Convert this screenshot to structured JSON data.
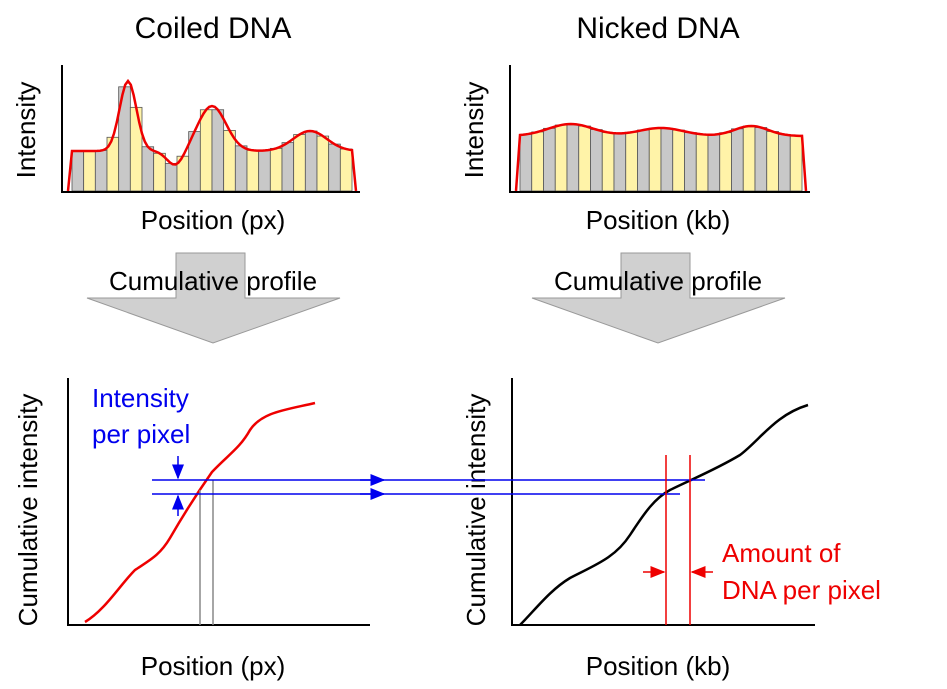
{
  "panels": [
    {
      "title": "Coiled DNA",
      "histogram": {
        "y_label": "Intensity",
        "x_label": "Position (px)"
      },
      "arrow_label": "Cumulative profile",
      "cumulative": {
        "y_label": "Cumulative intensity",
        "x_label": "Position (px)"
      },
      "annotation": [
        "Intensity",
        "per pixel"
      ]
    },
    {
      "title": "Nicked DNA",
      "histogram": {
        "y_label": "Intensity",
        "x_label": "Position (kb)"
      },
      "arrow_label": "Cumulative profile",
      "cumulative": {
        "y_label": "Cumulative intensity",
        "x_label": "Position (kb)"
      },
      "annotation": [
        "Amount of",
        "DNA per pixel"
      ]
    }
  ]
}
